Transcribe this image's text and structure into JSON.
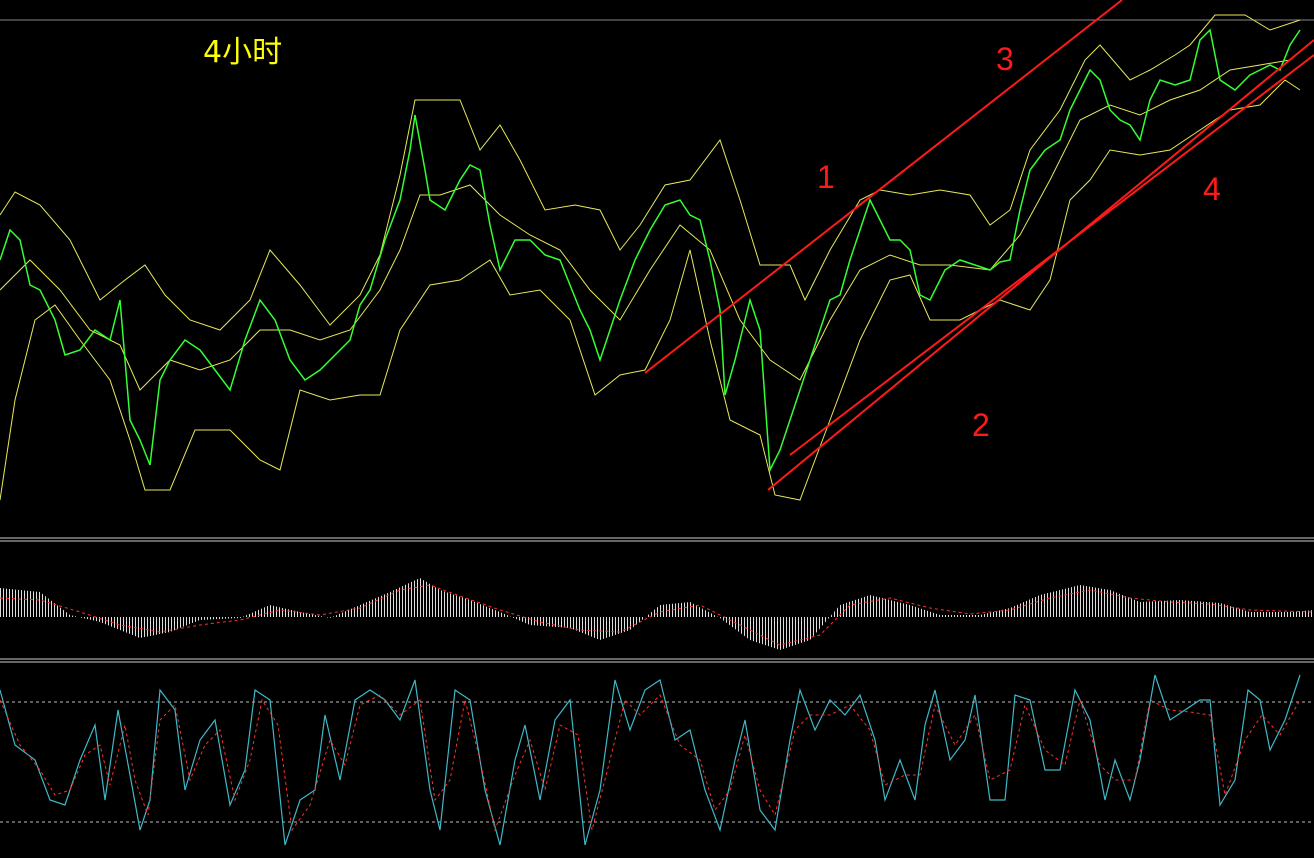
{
  "header": {
    "timeframe": "4小时"
  },
  "annotations": {
    "channel_labels": [
      "1",
      "2",
      "3",
      "4"
    ]
  }
}
